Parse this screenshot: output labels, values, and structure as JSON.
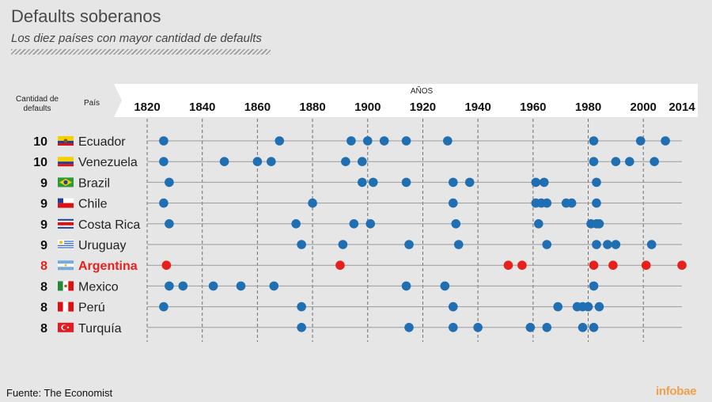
{
  "title": "Defaults soberanos",
  "subtitle": "Los diez países con mayor cantidad de defaults",
  "header": {
    "count_label_line1": "Cantidad de",
    "count_label_line2": "defaults",
    "country_label": "País",
    "years_label": "AÑOS"
  },
  "source": "Fuente: The Economist",
  "logo": "infobae",
  "colors": {
    "default_dot": "#1f6fb2",
    "highlight": "#e8201c",
    "grid": "#6e6e6e",
    "background": "#e6e6e6"
  },
  "chart_data": {
    "type": "scatter",
    "x_ticks": [
      1820,
      1840,
      1860,
      1880,
      1900,
      1920,
      1940,
      1960,
      1980,
      2000,
      2014
    ],
    "xlim": [
      1820,
      2014
    ],
    "rows": [
      {
        "country": "Ecuador",
        "count": "10",
        "flag": "ecuador",
        "highlight": false,
        "years": [
          1826,
          1868,
          1894,
          1900,
          1906,
          1914,
          1929,
          1982,
          1999,
          2008
        ]
      },
      {
        "country": "Venezuela",
        "count": "10",
        "flag": "venezuela",
        "highlight": false,
        "years": [
          1826,
          1848,
          1860,
          1865,
          1892,
          1898,
          1982,
          1990,
          1995,
          2004
        ]
      },
      {
        "country": "Brazil",
        "count": "9",
        "flag": "brazil",
        "highlight": false,
        "years": [
          1828,
          1898,
          1902,
          1914,
          1931,
          1937,
          1961,
          1964,
          1983
        ]
      },
      {
        "country": "Chile",
        "count": "9",
        "flag": "chile",
        "highlight": false,
        "years": [
          1826,
          1880,
          1931,
          1961,
          1963,
          1965,
          1972,
          1974,
          1983
        ]
      },
      {
        "country": "Costa Rica",
        "count": "9",
        "flag": "costa-rica",
        "highlight": false,
        "years": [
          1828,
          1874,
          1895,
          1901,
          1932,
          1962,
          1981,
          1983,
          1984
        ]
      },
      {
        "country": "Uruguay",
        "count": "9",
        "flag": "uruguay",
        "highlight": false,
        "years": [
          1876,
          1891,
          1915,
          1933,
          1965,
          1983,
          1987,
          1990,
          2003
        ]
      },
      {
        "country": "Argentina",
        "count": "8",
        "flag": "argentina",
        "highlight": true,
        "years": [
          1827,
          1890,
          1951,
          1956,
          1982,
          1989,
          2001,
          2014
        ]
      },
      {
        "country": "Mexico",
        "count": "8",
        "flag": "mexico",
        "highlight": false,
        "years": [
          1828,
          1833,
          1844,
          1854,
          1866,
          1914,
          1928,
          1982
        ]
      },
      {
        "country": "Perú",
        "count": "8",
        "flag": "peru",
        "highlight": false,
        "years": [
          1826,
          1876,
          1931,
          1969,
          1976,
          1978,
          1980,
          1984
        ]
      },
      {
        "country": "Turquía",
        "count": "8",
        "flag": "turkey",
        "highlight": false,
        "years": [
          1876,
          1915,
          1931,
          1940,
          1959,
          1965,
          1978,
          1982
        ]
      }
    ]
  }
}
